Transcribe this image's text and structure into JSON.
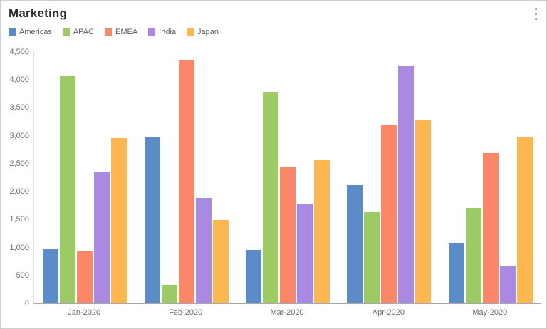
{
  "header": {
    "title": "Marketing"
  },
  "menu": {
    "icon": "kebab-menu-icon"
  },
  "colors": {
    "axis_line": "#a8a8a8",
    "y_axis_line": "#e1e1e1",
    "tick_text": "#6e6e6e",
    "legend_text": "#5e5e5e",
    "title_text": "#2e2e2e"
  },
  "chart_data": {
    "type": "bar",
    "title": "Marketing",
    "categories": [
      "Jan-2020",
      "Feb-2020",
      "Mar-2020",
      "Apr-2020",
      "May-2020"
    ],
    "series": [
      {
        "name": "Americas",
        "color": "#5b8cc8",
        "values": [
          975,
          2975,
          950,
          2100,
          1075
        ]
      },
      {
        "name": "APAC",
        "color": "#9ccb65",
        "values": [
          4050,
          325,
          3775,
          1625,
          1700
        ]
      },
      {
        "name": "EMEA",
        "color": "#fc8668",
        "values": [
          925,
          4350,
          2425,
          3175,
          2675
        ]
      },
      {
        "name": "India",
        "color": "#a98ae0",
        "values": [
          2350,
          1875,
          1775,
          4250,
          650
        ]
      },
      {
        "name": "Japan",
        "color": "#fdb751",
        "values": [
          2950,
          1475,
          2550,
          3275,
          2975
        ]
      }
    ],
    "xlabel": "",
    "ylabel": "",
    "ylim": [
      0,
      4500
    ],
    "y_tick_step": 500,
    "y_tick_labels": [
      "0",
      "500",
      "1,000",
      "1,500",
      "2,000",
      "2,500",
      "3,000",
      "3,500",
      "4,000",
      "4,500"
    ],
    "grid": false,
    "legend_position": "top-left"
  }
}
